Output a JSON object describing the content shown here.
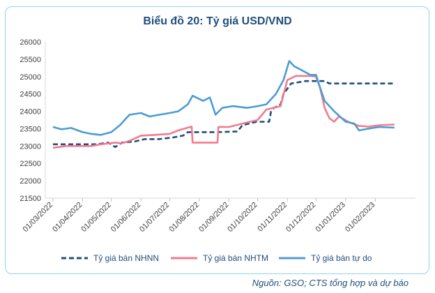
{
  "chart_data": {
    "type": "line",
    "title": "Biểu đồ 20: Tỷ giá USD/VND",
    "ylim": [
      21500,
      26000
    ],
    "yticks": [
      21500,
      22000,
      22500,
      23000,
      23500,
      24000,
      24500,
      25000,
      25500,
      26000
    ],
    "x_ticks": [
      "01/03/2022",
      "01/04/2022",
      "01/05/2022",
      "01/06/2022",
      "01/07/2022",
      "01/08/2022",
      "01/09/2022",
      "01/10/2022",
      "01/11/2022",
      "01/12/2022",
      "01/01/2023",
      "01/02/2023"
    ],
    "xlim": [
      "2022-02-21",
      "2023-03-15"
    ],
    "grid": false,
    "legend_position": "bottom",
    "series": [
      {
        "name": "Tỷ giá bán NHNN",
        "color": "#1f4e79",
        "style": "dashed",
        "points": [
          [
            "2022-03-01",
            23050
          ],
          [
            "2022-04-15",
            23050
          ],
          [
            "2022-04-28",
            23100
          ],
          [
            "2022-05-05",
            22970
          ],
          [
            "2022-05-12",
            23100
          ],
          [
            "2022-05-25",
            23130
          ],
          [
            "2022-06-05",
            23200
          ],
          [
            "2022-06-20",
            23200
          ],
          [
            "2022-07-05",
            23250
          ],
          [
            "2022-07-15",
            23300
          ],
          [
            "2022-07-20",
            23400
          ],
          [
            "2022-08-20",
            23400
          ],
          [
            "2022-09-10",
            23420
          ],
          [
            "2022-09-15",
            23600
          ],
          [
            "2022-09-30",
            23700
          ],
          [
            "2022-10-13",
            23700
          ],
          [
            "2022-10-15",
            24000
          ],
          [
            "2022-10-18",
            24100
          ],
          [
            "2022-10-25",
            24200
          ],
          [
            "2022-10-28",
            24500
          ],
          [
            "2022-11-05",
            24800
          ],
          [
            "2022-11-20",
            24870
          ],
          [
            "2022-12-10",
            24870
          ],
          [
            "2022-12-15",
            24800
          ],
          [
            "2023-02-21",
            24800
          ]
        ]
      },
      {
        "name": "Tỷ giá bán NHTM",
        "color": "#f07b8e",
        "style": "solid",
        "points": [
          [
            "2022-03-01",
            22950
          ],
          [
            "2022-03-15",
            23000
          ],
          [
            "2022-04-10",
            23000
          ],
          [
            "2022-04-20",
            23050
          ],
          [
            "2022-05-05",
            23100
          ],
          [
            "2022-05-12",
            23080
          ],
          [
            "2022-05-20",
            23150
          ],
          [
            "2022-06-01",
            23300
          ],
          [
            "2022-06-15",
            23320
          ],
          [
            "2022-07-01",
            23350
          ],
          [
            "2022-07-10",
            23450
          ],
          [
            "2022-07-24",
            23560
          ],
          [
            "2022-07-25",
            23100
          ],
          [
            "2022-08-20",
            23100
          ],
          [
            "2022-08-21",
            23550
          ],
          [
            "2022-09-01",
            23550
          ],
          [
            "2022-09-20",
            23680
          ],
          [
            "2022-10-01",
            23750
          ],
          [
            "2022-10-10",
            24050
          ],
          [
            "2022-10-25",
            24150
          ],
          [
            "2022-11-01",
            24900
          ],
          [
            "2022-11-10",
            25020
          ],
          [
            "2022-11-25",
            25020
          ],
          [
            "2022-12-01",
            25000
          ],
          [
            "2022-12-05",
            24700
          ],
          [
            "2022-12-10",
            24100
          ],
          [
            "2022-12-15",
            23800
          ],
          [
            "2022-12-20",
            23700
          ],
          [
            "2022-12-25",
            23850
          ],
          [
            "2023-01-05",
            23680
          ],
          [
            "2023-01-15",
            23580
          ],
          [
            "2023-01-25",
            23560
          ],
          [
            "2023-02-05",
            23600
          ],
          [
            "2023-02-21",
            23620
          ]
        ]
      },
      {
        "name": "Tỷ giá bán tự do",
        "color": "#4b9cd3",
        "style": "solid",
        "points": [
          [
            "2022-03-01",
            23550
          ],
          [
            "2022-03-10",
            23480
          ],
          [
            "2022-03-20",
            23520
          ],
          [
            "2022-04-01",
            23400
          ],
          [
            "2022-04-10",
            23350
          ],
          [
            "2022-04-20",
            23320
          ],
          [
            "2022-05-01",
            23400
          ],
          [
            "2022-05-10",
            23600
          ],
          [
            "2022-05-20",
            23900
          ],
          [
            "2022-06-01",
            23950
          ],
          [
            "2022-06-10",
            23850
          ],
          [
            "2022-06-20",
            23900
          ],
          [
            "2022-07-01",
            23950
          ],
          [
            "2022-07-10",
            24000
          ],
          [
            "2022-07-20",
            24200
          ],
          [
            "2022-07-25",
            24450
          ],
          [
            "2022-08-05",
            24300
          ],
          [
            "2022-08-12",
            24400
          ],
          [
            "2022-08-18",
            23900
          ],
          [
            "2022-08-25",
            24100
          ],
          [
            "2022-09-05",
            24150
          ],
          [
            "2022-09-20",
            24100
          ],
          [
            "2022-10-01",
            24150
          ],
          [
            "2022-10-10",
            24200
          ],
          [
            "2022-10-20",
            24500
          ],
          [
            "2022-10-28",
            24900
          ],
          [
            "2022-11-03",
            25450
          ],
          [
            "2022-11-08",
            25300
          ],
          [
            "2022-11-15",
            25200
          ],
          [
            "2022-11-25",
            25050
          ],
          [
            "2022-12-01",
            25050
          ],
          [
            "2022-12-05",
            24700
          ],
          [
            "2022-12-10",
            24300
          ],
          [
            "2022-12-15",
            24150
          ],
          [
            "2022-12-20",
            24000
          ],
          [
            "2023-01-01",
            23700
          ],
          [
            "2023-01-10",
            23650
          ],
          [
            "2023-01-15",
            23450
          ],
          [
            "2023-01-25",
            23500
          ],
          [
            "2023-02-05",
            23550
          ],
          [
            "2023-02-21",
            23530
          ]
        ]
      }
    ]
  },
  "source": "Nguồn: GSO; CTS tổng hợp và dự báo"
}
